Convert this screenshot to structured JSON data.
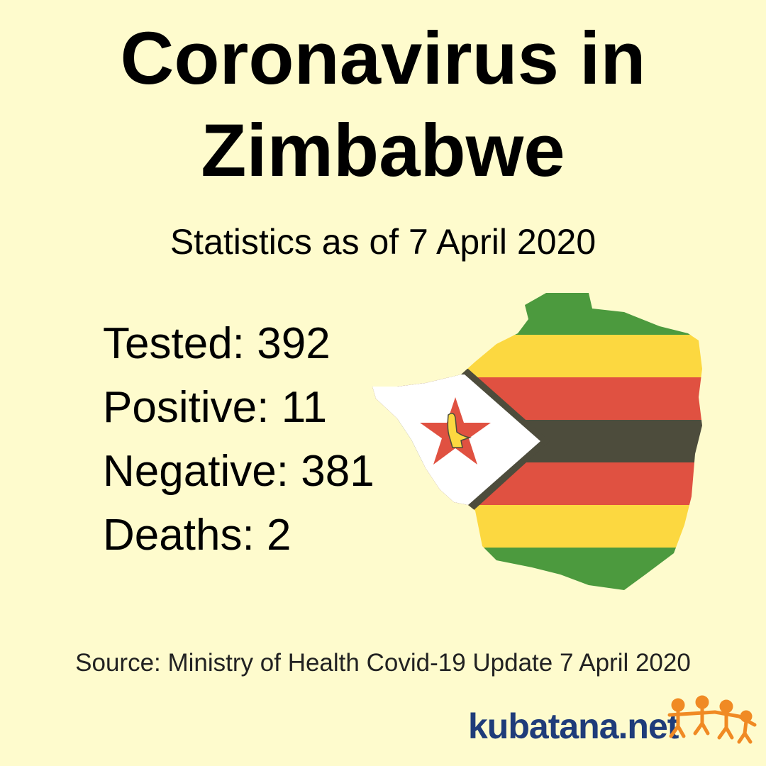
{
  "header": {
    "title_lines": [
      "Coronavirus in",
      "Zimbabwe"
    ],
    "subtitle": "Statistics as of 7 April 2020"
  },
  "stats": [
    {
      "label": "Tested:",
      "value": 392
    },
    {
      "label": "Positive:",
      "value": 11
    },
    {
      "label": "Negative:",
      "value": 381
    },
    {
      "label": "Deaths:",
      "value": 2
    }
  ],
  "source": "Source: Ministry of Health Covid-19 Update 7 April 2020",
  "logo": "kubatana.net"
}
